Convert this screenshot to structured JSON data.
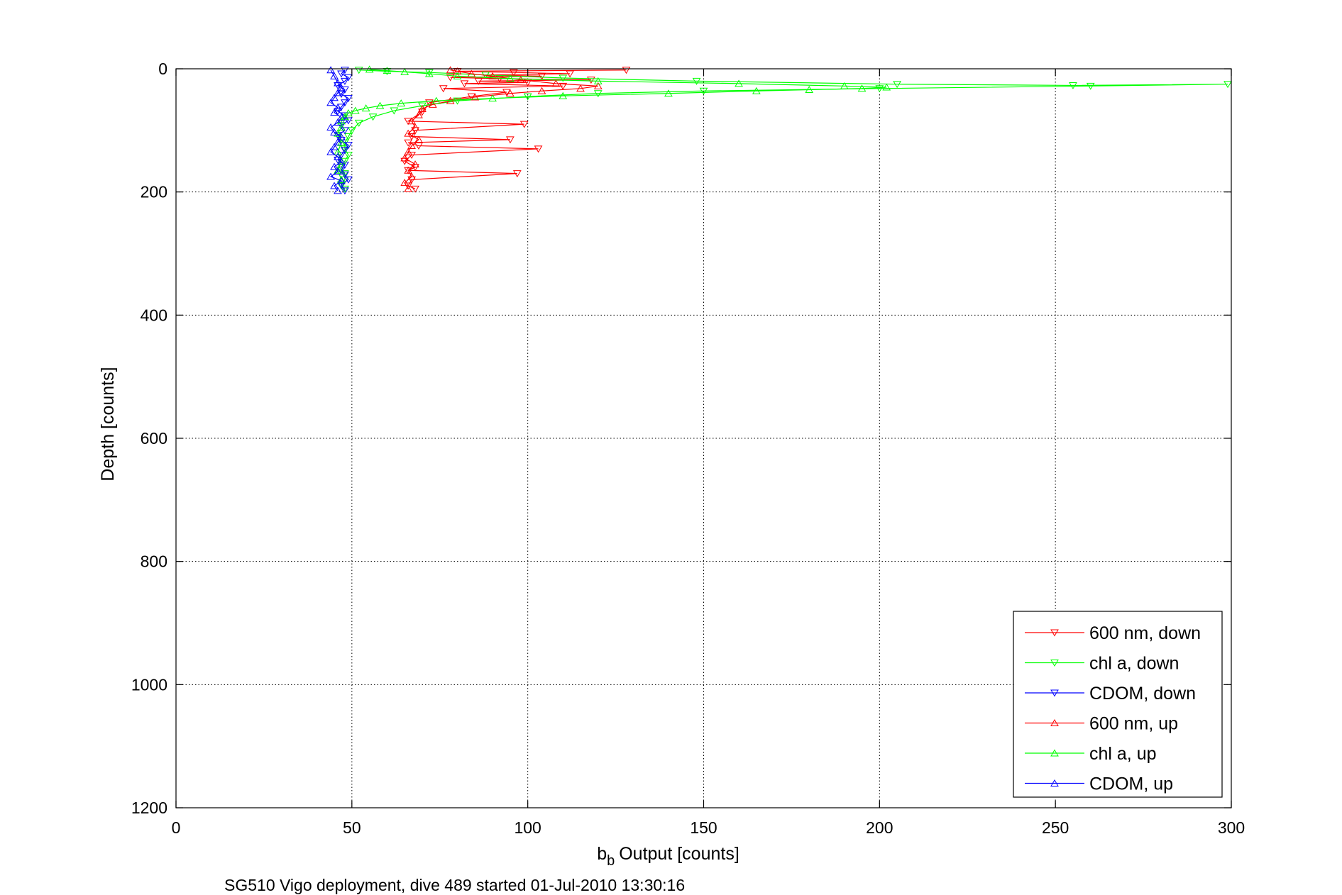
{
  "chart_data": {
    "type": "line",
    "title": "",
    "xlabel": "Output [counts]",
    "xlabel_prefix": "b",
    "xlabel_subscript": "b",
    "ylabel": "Depth [counts]",
    "xlim": [
      0,
      300
    ],
    "ylim": [
      0,
      1200
    ],
    "y_reversed": true,
    "x_ticks": [
      0,
      50,
      100,
      150,
      200,
      250,
      300
    ],
    "x_tick_labels": [
      "0",
      "50",
      "100",
      "150",
      "200",
      "250",
      "300"
    ],
    "y_ticks": [
      0,
      200,
      400,
      600,
      800,
      1000,
      1200
    ],
    "y_tick_labels": [
      "0",
      "200",
      "400",
      "600",
      "800",
      "1000",
      "1200"
    ],
    "grid": true,
    "legend_position": "bottom-right",
    "caption": "SG510 Vigo deployment, dive 489 started 01-Jul-2010 13:30:16",
    "series": [
      {
        "name": "600 nm, down",
        "color": "#ff0000",
        "marker": "triangle-down",
        "x": [
          128,
          80,
          96,
          112,
          88,
          104,
          78,
          92,
          118,
          86,
          100,
          82,
          110,
          76,
          94,
          84,
          72,
          70,
          66,
          99,
          68,
          67,
          95,
          66,
          69,
          103,
          67,
          65,
          68,
          66,
          97,
          67,
          66,
          68
        ],
        "y": [
          2,
          4,
          6,
          8,
          10,
          12,
          14,
          16,
          18,
          20,
          22,
          24,
          28,
          32,
          38,
          45,
          55,
          70,
          85,
          90,
          100,
          110,
          115,
          120,
          125,
          130,
          140,
          150,
          160,
          165,
          170,
          180,
          190,
          195
        ]
      },
      {
        "name": "chl a, down",
        "color": "#00ff00",
        "marker": "triangle-down",
        "x": [
          52,
          60,
          72,
          88,
          110,
          148,
          205,
          255,
          299,
          260,
          200,
          150,
          120,
          100,
          80,
          70,
          62,
          56,
          52,
          50,
          49,
          48,
          48,
          49,
          48,
          47,
          48,
          48,
          47,
          48
        ],
        "y": [
          2,
          4,
          6,
          10,
          15,
          20,
          25,
          27,
          25,
          28,
          32,
          36,
          40,
          45,
          52,
          60,
          68,
          78,
          88,
          100,
          110,
          120,
          130,
          140,
          150,
          160,
          170,
          180,
          190,
          195
        ]
      },
      {
        "name": "CDOM, down",
        "color": "#0000ff",
        "marker": "triangle-down",
        "x": [
          48,
          47,
          49,
          48,
          46,
          48,
          47,
          49,
          48,
          47,
          46,
          48,
          49,
          47,
          48,
          46,
          47,
          49,
          48,
          47,
          46,
          48,
          47,
          48,
          49,
          47,
          48
        ],
        "y": [
          2,
          8,
          14,
          20,
          27,
          34,
          41,
          48,
          55,
          62,
          69,
          76,
          84,
          92,
          100,
          108,
          116,
          124,
          132,
          140,
          148,
          156,
          164,
          172,
          180,
          188,
          198
        ]
      },
      {
        "name": "600 nm, up",
        "color": "#ff0000",
        "marker": "triangle-up",
        "x": [
          66,
          65,
          67,
          66,
          68,
          65,
          66,
          67,
          69,
          66,
          68,
          67,
          69,
          70,
          73,
          78,
          85,
          95,
          104,
          115,
          120,
          108,
          98,
          90,
          84,
          80,
          78
        ],
        "y": [
          195,
          185,
          175,
          165,
          155,
          145,
          135,
          125,
          115,
          105,
          95,
          85,
          75,
          65,
          58,
          52,
          46,
          40,
          36,
          32,
          28,
          24,
          18,
          12,
          8,
          4,
          2
        ]
      },
      {
        "name": "chl a, up",
        "color": "#00ff00",
        "marker": "triangle-up",
        "x": [
          47,
          46,
          47,
          46,
          47,
          46,
          47,
          47,
          48,
          49,
          51,
          54,
          58,
          64,
          74,
          90,
          110,
          140,
          165,
          180,
          195,
          202,
          190,
          160,
          120,
          95,
          80,
          72,
          65,
          60,
          55
        ],
        "y": [
          180,
          165,
          150,
          135,
          120,
          105,
          95,
          85,
          78,
          72,
          68,
          64,
          60,
          56,
          52,
          48,
          44,
          40,
          36,
          34,
          32,
          30,
          28,
          24,
          20,
          16,
          12,
          8,
          5,
          3,
          1
        ]
      },
      {
        "name": "CDOM, up",
        "color": "#0000ff",
        "marker": "triangle-up",
        "x": [
          46,
          45,
          47,
          44,
          46,
          45,
          47,
          46,
          44,
          45,
          46,
          47,
          45,
          44,
          46,
          47,
          45,
          46,
          44,
          45,
          46,
          47,
          46,
          45,
          44
        ],
        "y": [
          198,
          190,
          182,
          175,
          167,
          159,
          151,
          143,
          135,
          127,
          119,
          111,
          103,
          95,
          87,
          79,
          71,
          63,
          55,
          47,
          39,
          31,
          23,
          12,
          2
        ]
      }
    ]
  }
}
